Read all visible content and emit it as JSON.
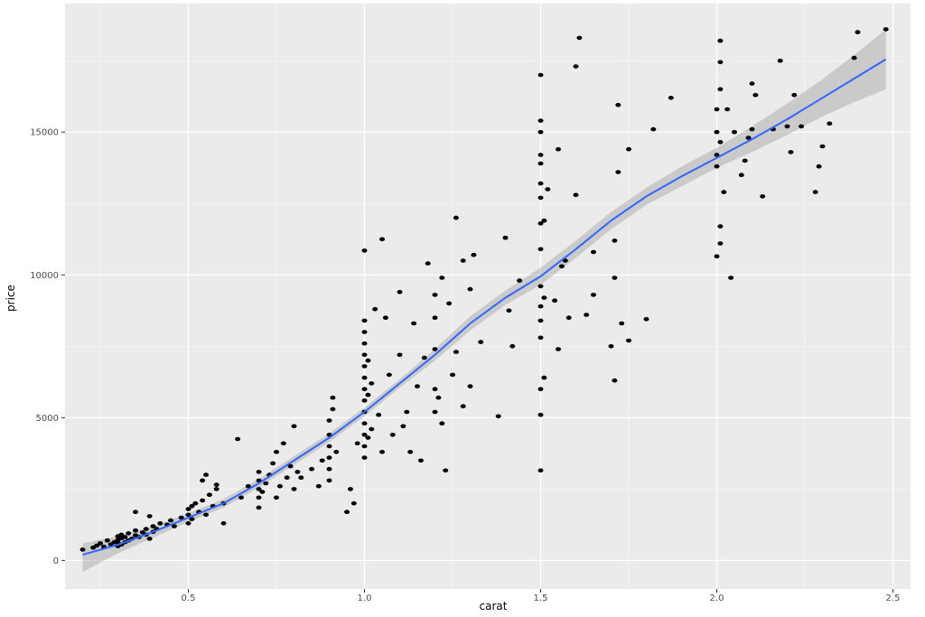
{
  "colors": {
    "panel_background": "#ebebeb",
    "major_grid": "#ffffff",
    "minor_grid": "#f5f5f5",
    "points": "#000000",
    "smooth_line": "#3366ff",
    "confidence_band": "#999999"
  },
  "chart_data": {
    "type": "scatter",
    "title": "",
    "xlabel": "carat",
    "ylabel": "price",
    "xlim": [
      0.15,
      2.55
    ],
    "ylim": [
      -1000,
      19500
    ],
    "grid": true,
    "legend": "none",
    "x_ticks": [
      {
        "value": 0.5,
        "label": "0.5"
      },
      {
        "value": 1.0,
        "label": "1.0"
      },
      {
        "value": 1.5,
        "label": "1.5"
      },
      {
        "value": 2.0,
        "label": "2.0"
      },
      {
        "value": 2.5,
        "label": "2.5"
      }
    ],
    "y_ticks": [
      {
        "value": 0,
        "label": "0"
      },
      {
        "value": 5000,
        "label": "5000"
      },
      {
        "value": 10000,
        "label": "10000"
      },
      {
        "value": 15000,
        "label": "15000"
      }
    ],
    "points": [
      [
        0.2,
        380
      ],
      [
        0.23,
        450
      ],
      [
        0.24,
        520
      ],
      [
        0.25,
        600
      ],
      [
        0.26,
        480
      ],
      [
        0.27,
        700
      ],
      [
        0.28,
        560
      ],
      [
        0.29,
        640
      ],
      [
        0.3,
        500
      ],
      [
        0.3,
        620
      ],
      [
        0.3,
        720
      ],
      [
        0.3,
        850
      ],
      [
        0.31,
        560
      ],
      [
        0.31,
        780
      ],
      [
        0.31,
        900
      ],
      [
        0.32,
        640
      ],
      [
        0.32,
        820
      ],
      [
        0.33,
        700
      ],
      [
        0.33,
        950
      ],
      [
        0.34,
        760
      ],
      [
        0.35,
        880
      ],
      [
        0.35,
        1050
      ],
      [
        0.36,
        820
      ],
      [
        0.37,
        980
      ],
      [
        0.38,
        900
      ],
      [
        0.38,
        1100
      ],
      [
        0.39,
        760
      ],
      [
        0.4,
        1000
      ],
      [
        0.4,
        1200
      ],
      [
        0.41,
        1100
      ],
      [
        0.42,
        1300
      ],
      [
        0.44,
        1250
      ],
      [
        0.45,
        1400
      ],
      [
        0.46,
        1200
      ],
      [
        0.48,
        1500
      ],
      [
        0.5,
        1300
      ],
      [
        0.5,
        1600
      ],
      [
        0.5,
        1800
      ],
      [
        0.51,
        1900
      ],
      [
        0.51,
        1450
      ],
      [
        0.52,
        2000
      ],
      [
        0.53,
        1700
      ],
      [
        0.54,
        2100
      ],
      [
        0.55,
        1600
      ],
      [
        0.56,
        2300
      ],
      [
        0.57,
        1900
      ],
      [
        0.58,
        2500
      ],
      [
        0.6,
        2000
      ],
      [
        0.35,
        1700
      ],
      [
        0.39,
        1550
      ],
      [
        0.54,
        2800
      ],
      [
        0.55,
        3000
      ],
      [
        0.58,
        2650
      ],
      [
        0.6,
        1300
      ],
      [
        0.64,
        4250
      ],
      [
        0.65,
        2200
      ],
      [
        0.67,
        2600
      ],
      [
        0.7,
        1850
      ],
      [
        0.7,
        2200
      ],
      [
        0.7,
        2500
      ],
      [
        0.7,
        2800
      ],
      [
        0.7,
        3100
      ],
      [
        0.71,
        2400
      ],
      [
        0.72,
        2700
      ],
      [
        0.73,
        3000
      ],
      [
        0.74,
        3400
      ],
      [
        0.75,
        2200
      ],
      [
        0.75,
        3800
      ],
      [
        0.76,
        2600
      ],
      [
        0.77,
        4100
      ],
      [
        0.78,
        2900
      ],
      [
        0.79,
        3300
      ],
      [
        0.8,
        2500
      ],
      [
        0.8,
        4700
      ],
      [
        0.81,
        3100
      ],
      [
        0.82,
        2900
      ],
      [
        0.85,
        3200
      ],
      [
        0.87,
        2600
      ],
      [
        0.88,
        3500
      ],
      [
        0.9,
        2800
      ],
      [
        0.9,
        3200
      ],
      [
        0.9,
        3600
      ],
      [
        0.9,
        4000
      ],
      [
        0.9,
        4400
      ],
      [
        0.9,
        4900
      ],
      [
        0.91,
        5300
      ],
      [
        0.91,
        5700
      ],
      [
        0.92,
        3800
      ],
      [
        0.95,
        1700
      ],
      [
        0.96,
        2500
      ],
      [
        0.97,
        2000
      ],
      [
        0.98,
        4100
      ],
      [
        1.0,
        3600
      ],
      [
        1.0,
        4000
      ],
      [
        1.0,
        4400
      ],
      [
        1.0,
        4800
      ],
      [
        1.0,
        5200
      ],
      [
        1.0,
        5600
      ],
      [
        1.0,
        6000
      ],
      [
        1.0,
        6400
      ],
      [
        1.0,
        6800
      ],
      [
        1.0,
        7200
      ],
      [
        1.0,
        7600
      ],
      [
        1.0,
        8000
      ],
      [
        1.0,
        8400
      ],
      [
        1.0,
        10850
      ],
      [
        1.01,
        4300
      ],
      [
        1.01,
        5800
      ],
      [
        1.01,
        7000
      ],
      [
        1.02,
        4600
      ],
      [
        1.02,
        6200
      ],
      [
        1.03,
        8800
      ],
      [
        1.04,
        5100
      ],
      [
        1.05,
        3800
      ],
      [
        1.05,
        11250
      ],
      [
        1.06,
        8500
      ],
      [
        1.07,
        6500
      ],
      [
        1.08,
        4400
      ],
      [
        1.1,
        7200
      ],
      [
        1.1,
        9400
      ],
      [
        1.11,
        4700
      ],
      [
        1.12,
        5200
      ],
      [
        1.13,
        3800
      ],
      [
        1.14,
        8300
      ],
      [
        1.15,
        6100
      ],
      [
        1.16,
        3500
      ],
      [
        1.17,
        7100
      ],
      [
        1.18,
        10400
      ],
      [
        1.2,
        5200
      ],
      [
        1.2,
        6000
      ],
      [
        1.2,
        7400
      ],
      [
        1.2,
        8500
      ],
      [
        1.2,
        9300
      ],
      [
        1.21,
        5700
      ],
      [
        1.22,
        4800
      ],
      [
        1.22,
        9900
      ],
      [
        1.23,
        3150
      ],
      [
        1.24,
        9000
      ],
      [
        1.25,
        6500
      ],
      [
        1.26,
        7300
      ],
      [
        1.26,
        12000
      ],
      [
        1.28,
        5400
      ],
      [
        1.28,
        10500
      ],
      [
        1.3,
        6100
      ],
      [
        1.3,
        9500
      ],
      [
        1.31,
        10700
      ],
      [
        1.33,
        7650
      ],
      [
        1.38,
        5050
      ],
      [
        1.4,
        11300
      ],
      [
        1.41,
        8750
      ],
      [
        1.42,
        7500
      ],
      [
        1.44,
        9800
      ],
      [
        1.5,
        3150
      ],
      [
        1.5,
        5100
      ],
      [
        1.5,
        6000
      ],
      [
        1.5,
        7800
      ],
      [
        1.5,
        8400
      ],
      [
        1.5,
        8900
      ],
      [
        1.5,
        9600
      ],
      [
        1.5,
        10900
      ],
      [
        1.5,
        11800
      ],
      [
        1.5,
        12700
      ],
      [
        1.5,
        13200
      ],
      [
        1.5,
        13900
      ],
      [
        1.5,
        14200
      ],
      [
        1.5,
        15000
      ],
      [
        1.5,
        15400
      ],
      [
        1.5,
        17000
      ],
      [
        1.51,
        6400
      ],
      [
        1.51,
        9200
      ],
      [
        1.51,
        11900
      ],
      [
        1.52,
        13000
      ],
      [
        1.54,
        9100
      ],
      [
        1.55,
        14400
      ],
      [
        1.55,
        7400
      ],
      [
        1.56,
        10300
      ],
      [
        1.57,
        10500
      ],
      [
        1.58,
        8500
      ],
      [
        1.6,
        12800
      ],
      [
        1.6,
        17300
      ],
      [
        1.61,
        18300
      ],
      [
        1.63,
        8600
      ],
      [
        1.65,
        9300
      ],
      [
        1.65,
        10800
      ],
      [
        1.7,
        7500
      ],
      [
        1.71,
        6300
      ],
      [
        1.71,
        9900
      ],
      [
        1.71,
        11200
      ],
      [
        1.72,
        13600
      ],
      [
        1.72,
        15950
      ],
      [
        1.73,
        8300
      ],
      [
        1.75,
        7700
      ],
      [
        1.75,
        14400
      ],
      [
        1.8,
        8450
      ],
      [
        1.82,
        15100
      ],
      [
        1.87,
        16200
      ],
      [
        2.0,
        10650
      ],
      [
        2.0,
        13800
      ],
      [
        2.0,
        14200
      ],
      [
        2.0,
        15000
      ],
      [
        2.0,
        15800
      ],
      [
        2.01,
        11100
      ],
      [
        2.01,
        11700
      ],
      [
        2.01,
        14650
      ],
      [
        2.01,
        16500
      ],
      [
        2.01,
        17450
      ],
      [
        2.01,
        18200
      ],
      [
        2.02,
        12900
      ],
      [
        2.03,
        15800
      ],
      [
        2.04,
        9900
      ],
      [
        2.05,
        15000
      ],
      [
        2.07,
        13500
      ],
      [
        2.08,
        14000
      ],
      [
        2.09,
        14800
      ],
      [
        2.1,
        15100
      ],
      [
        2.1,
        16700
      ],
      [
        2.11,
        16300
      ],
      [
        2.13,
        12750
      ],
      [
        2.16,
        15100
      ],
      [
        2.18,
        17500
      ],
      [
        2.2,
        15200
      ],
      [
        2.21,
        14300
      ],
      [
        2.22,
        16300
      ],
      [
        2.24,
        15200
      ],
      [
        2.28,
        12900
      ],
      [
        2.29,
        13800
      ],
      [
        2.3,
        14500
      ],
      [
        2.32,
        15300
      ],
      [
        2.39,
        17600
      ],
      [
        2.4,
        18500
      ],
      [
        2.48,
        18600
      ]
    ],
    "smooth": {
      "x": [
        0.2,
        0.3,
        0.4,
        0.5,
        0.6,
        0.7,
        0.8,
        0.9,
        1.0,
        1.1,
        1.2,
        1.3,
        1.4,
        1.5,
        1.6,
        1.7,
        1.8,
        1.9,
        2.0,
        2.1,
        2.2,
        2.3,
        2.4,
        2.48
      ],
      "y": [
        200,
        550,
        1000,
        1500,
        2000,
        2700,
        3500,
        4300,
        5200,
        6200,
        7200,
        8300,
        9200,
        9950,
        10900,
        11900,
        12750,
        13450,
        14100,
        14750,
        15450,
        16200,
        16950,
        17550
      ],
      "lower": [
        -400,
        250,
        800,
        1350,
        1850,
        2550,
        3350,
        4150,
        5050,
        6050,
        7000,
        8050,
        8950,
        9650,
        10600,
        11600,
        12450,
        13100,
        13750,
        14300,
        14900,
        15550,
        16100,
        16500
      ],
      "upper": [
        600,
        850,
        1200,
        1650,
        2150,
        2850,
        3650,
        4450,
        5350,
        6350,
        7400,
        8550,
        9450,
        10250,
        11200,
        12200,
        13050,
        13800,
        14450,
        15200,
        16000,
        16850,
        17800,
        18600
      ]
    }
  }
}
